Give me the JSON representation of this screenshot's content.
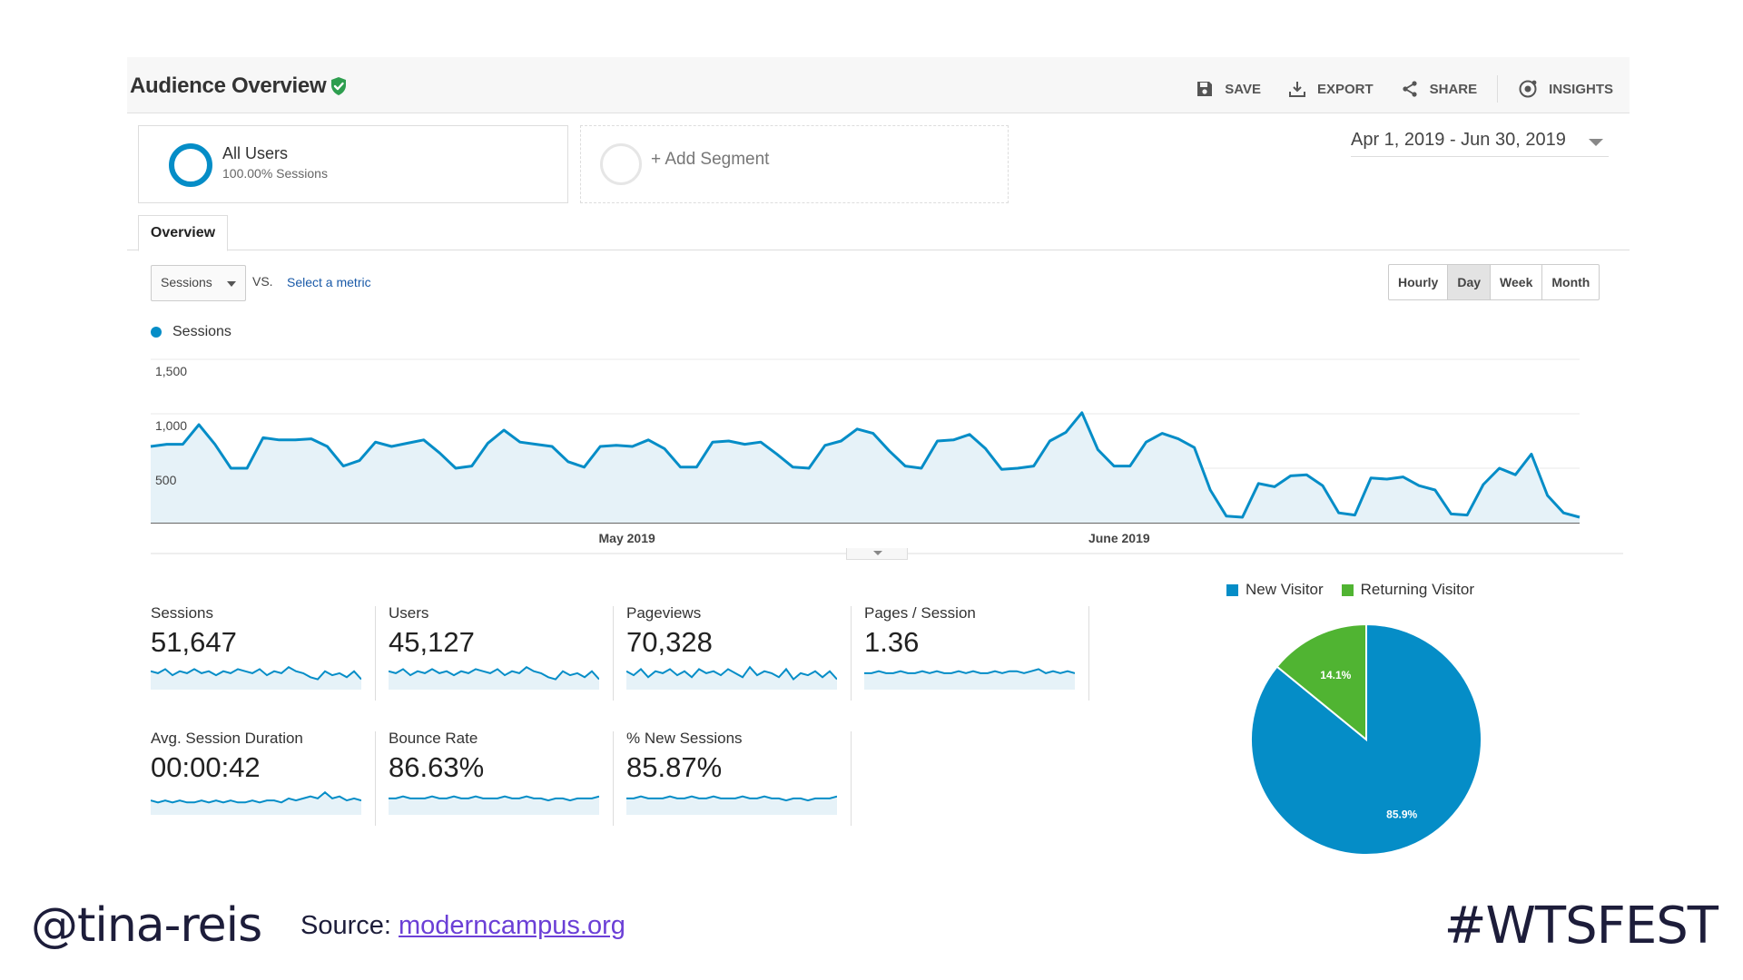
{
  "header": {
    "title": "Audience Overview",
    "actions": {
      "save": "SAVE",
      "export": "EXPORT",
      "share": "SHARE",
      "insights": "INSIGHTS"
    }
  },
  "segments": {
    "all_users": {
      "name": "All Users",
      "sub": "100.00% Sessions"
    },
    "add_segment": "+ Add Segment"
  },
  "date_range": "Apr 1, 2019 - Jun 30, 2019",
  "tabs": {
    "overview": "Overview"
  },
  "controls": {
    "metric": "Sessions",
    "vs": "VS.",
    "select_metric": "Select a metric",
    "granularity": [
      "Hourly",
      "Day",
      "Week",
      "Month"
    ],
    "active_granularity": "Day"
  },
  "colors": {
    "accent": "#058dc7",
    "returning": "#50b432",
    "area_fill": "#e6f2f8"
  },
  "chart_data": [
    {
      "type": "area",
      "series_label": "Sessions",
      "x_start": "2019-04-01",
      "x_end": "2019-06-30",
      "x_ticks": [
        {
          "label": "May 2019",
          "date": "2019-05-01"
        },
        {
          "label": "June 2019",
          "date": "2019-06-01"
        }
      ],
      "y_ticks": [
        {
          "label": "1,500",
          "value": 1500
        },
        {
          "label": "1,000",
          "value": 1000
        },
        {
          "label": "500",
          "value": 500
        }
      ],
      "ylim": [
        0,
        1500
      ],
      "values": [
        700,
        720,
        720,
        900,
        720,
        500,
        500,
        780,
        760,
        760,
        770,
        700,
        520,
        570,
        740,
        700,
        730,
        760,
        640,
        500,
        520,
        730,
        850,
        740,
        720,
        700,
        560,
        510,
        700,
        710,
        700,
        760,
        680,
        510,
        510,
        740,
        750,
        720,
        740,
        630,
        510,
        500,
        710,
        750,
        860,
        820,
        660,
        520,
        500,
        750,
        760,
        810,
        680,
        490,
        500,
        520,
        750,
        830,
        1010,
        670,
        520,
        520,
        740,
        820,
        770,
        690,
        300,
        60,
        50,
        360,
        330,
        430,
        440,
        340,
        90,
        70,
        410,
        400,
        420,
        340,
        300,
        80,
        70,
        350,
        500,
        440,
        630,
        250,
        90,
        50
      ]
    },
    {
      "type": "pie",
      "legend": [
        "New Visitor",
        "Returning Visitor"
      ],
      "values": [
        85.9,
        14.1
      ],
      "labels": [
        "85.9%",
        "14.1%"
      ],
      "colors": [
        "#058dc7",
        "#50b432"
      ]
    }
  ],
  "metrics": [
    {
      "label": "Sessions",
      "value": "51,647",
      "spark": [
        6,
        5,
        7,
        4,
        6,
        5,
        7,
        5,
        6,
        4,
        6,
        5,
        7,
        6,
        5,
        7,
        4,
        6,
        5,
        8,
        6,
        5,
        3,
        2,
        6,
        4,
        5,
        3,
        6,
        2
      ]
    },
    {
      "label": "Users",
      "value": "45,127",
      "spark": [
        6,
        5,
        7,
        4,
        6,
        5,
        7,
        5,
        6,
        4,
        6,
        5,
        7,
        6,
        5,
        7,
        4,
        6,
        5,
        8,
        6,
        5,
        3,
        2,
        6,
        4,
        5,
        3,
        6,
        2
      ]
    },
    {
      "label": "Pageviews",
      "value": "70,328",
      "spark": [
        6,
        4,
        7,
        3,
        6,
        5,
        7,
        4,
        6,
        3,
        7,
        5,
        6,
        4,
        7,
        5,
        3,
        8,
        4,
        6,
        5,
        3,
        7,
        2,
        5,
        4,
        6,
        3,
        6,
        2
      ]
    },
    {
      "label": "Pages / Session",
      "value": "1.36",
      "spark": [
        5,
        5,
        6,
        5,
        5,
        6,
        5,
        5,
        6,
        5,
        6,
        5,
        5,
        6,
        5,
        6,
        5,
        5,
        6,
        5,
        6,
        6,
        5,
        6,
        7,
        5,
        6,
        5,
        6,
        5
      ]
    },
    {
      "label": "Avg. Session Duration",
      "value": "00:00:42",
      "spark": [
        4,
        3,
        4,
        3,
        4,
        3,
        3,
        4,
        3,
        4,
        3,
        4,
        3,
        3,
        4,
        3,
        4,
        4,
        3,
        5,
        4,
        5,
        6,
        5,
        8,
        5,
        6,
        4,
        5,
        4
      ]
    },
    {
      "label": "Bounce Rate",
      "value": "86.63%",
      "spark": [
        5,
        5,
        6,
        5,
        5,
        5,
        6,
        5,
        5,
        6,
        5,
        5,
        6,
        5,
        5,
        5,
        6,
        5,
        5,
        6,
        5,
        5,
        4,
        5,
        5,
        4,
        5,
        5,
        5,
        6
      ]
    },
    {
      "label": "% New Sessions",
      "value": "85.87%",
      "spark": [
        5,
        5,
        6,
        5,
        5,
        5,
        6,
        5,
        5,
        6,
        5,
        5,
        6,
        5,
        5,
        5,
        6,
        5,
        5,
        6,
        5,
        5,
        4,
        5,
        5,
        4,
        5,
        5,
        5,
        6
      ]
    }
  ],
  "footer": {
    "handle": "@tina-reis",
    "source_label": "Source:",
    "source_link": "moderncampus.org",
    "hashtag": "#WTSFEST"
  }
}
